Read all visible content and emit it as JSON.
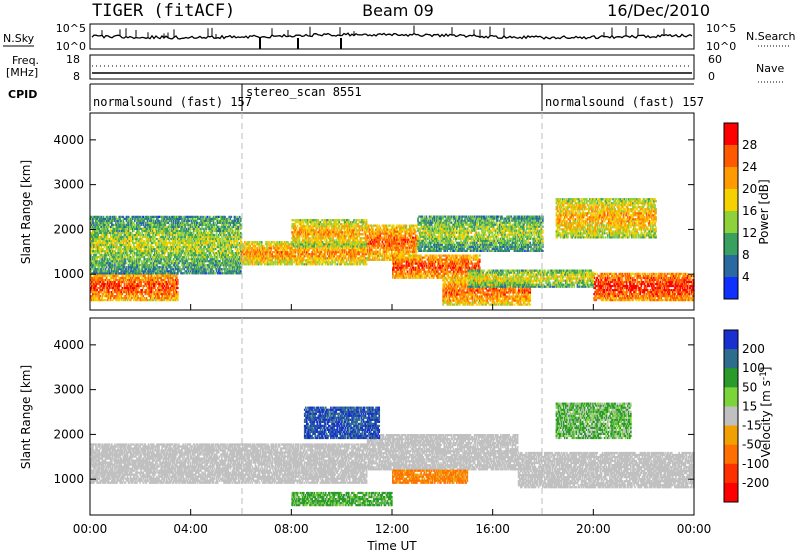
{
  "header": {
    "title": "TIGER (fitACF)",
    "beam": "Beam 09",
    "date": "16/Dec/2010"
  },
  "top_panels": {
    "nsky_label": "N.Sky",
    "nsearch_label": "N.Search",
    "nsky_ticks": [
      "10^5",
      "10^0"
    ],
    "nsearch_ticks": [
      "10^5",
      "10^0"
    ],
    "freq_label_1": "Freq.",
    "freq_label_2": "[MHz]",
    "freq_ticks": [
      "18",
      "8"
    ],
    "nave_label": "Nave",
    "nave_ticks": [
      "60",
      "0"
    ],
    "cpid_label": "CPID",
    "cpid_segments": [
      {
        "label": "normalsound (fast) 157",
        "start_hour": 0
      },
      {
        "label": "stereo_scan 8551",
        "start_hour": 6
      },
      {
        "label": "normalsound (fast) 157",
        "start_hour": 18
      }
    ]
  },
  "power_colorbar": {
    "label": "Power [dB]",
    "ticks": [
      "28",
      "24",
      "20",
      "16",
      "12",
      "8",
      "4"
    ],
    "colors": [
      "#ff0000",
      "#ff5a00",
      "#ff9a00",
      "#f5d100",
      "#8ed13a",
      "#3aa060",
      "#2a6aa0",
      "#1030ff"
    ]
  },
  "velocity_colorbar": {
    "label": "Velocity [m s^-1]",
    "ticks": [
      "200",
      "100",
      "50",
      "15",
      "-15",
      "-50",
      "-100",
      "-200"
    ],
    "colors": [
      "#1a2fd0",
      "#2e6e8c",
      "#2a9a2a",
      "#7ad43a",
      "#c0c0c0",
      "#f0a000",
      "#ff7000",
      "#ff3000",
      "#ff0000"
    ]
  },
  "chart_data": [
    {
      "type": "heatmap",
      "name_of_panel": "power",
      "ylabel": "Slant Range [km]",
      "y_ticks": [
        1000,
        2000,
        3000,
        4000
      ],
      "ylim": [
        200,
        4600
      ],
      "x_ticks": [
        "00:00",
        "04:00",
        "08:00",
        "12:00",
        "16:00",
        "20:00",
        "00:00"
      ],
      "xlim_hours": [
        0,
        24
      ],
      "scatter_bands": [
        {
          "t0": 0,
          "t1": 3.5,
          "r0": 400,
          "r1": 1000,
          "level": 26
        },
        {
          "t0": 0,
          "t1": 6,
          "r0": 1000,
          "r1": 2300,
          "level": 14
        },
        {
          "t0": 6,
          "t1": 11,
          "r0": 1200,
          "r1": 1700,
          "level": 22
        },
        {
          "t0": 8,
          "t1": 11,
          "r0": 1600,
          "r1": 2200,
          "level": 20
        },
        {
          "t0": 11,
          "t1": 13,
          "r0": 1300,
          "r1": 2100,
          "level": 24
        },
        {
          "t0": 12,
          "t1": 15.5,
          "r0": 900,
          "r1": 1400,
          "level": 26
        },
        {
          "t0": 13,
          "t1": 18,
          "r0": 1500,
          "r1": 2300,
          "level": 14
        },
        {
          "t0": 14,
          "t1": 17.5,
          "r0": 300,
          "r1": 900,
          "level": 24
        },
        {
          "t0": 18.5,
          "t1": 22.5,
          "r0": 1800,
          "r1": 2700,
          "level": 20
        },
        {
          "t0": 20,
          "t1": 24,
          "r0": 400,
          "r1": 1000,
          "level": 28
        },
        {
          "t0": 15,
          "t1": 20,
          "r0": 700,
          "r1": 1100,
          "level": 16
        }
      ]
    },
    {
      "type": "heatmap",
      "name_of_panel": "velocity",
      "ylabel": "Slant Range [km]",
      "xlabel": "Time UT",
      "y_ticks": [
        1000,
        2000,
        3000,
        4000
      ],
      "ylim": [
        200,
        4600
      ],
      "x_ticks": [
        "00:00",
        "04:00",
        "08:00",
        "12:00",
        "16:00",
        "20:00",
        "00:00"
      ],
      "xlim_hours": [
        0,
        24
      ],
      "scatter_bands": [
        {
          "t0": 0,
          "t1": 11,
          "r0": 900,
          "r1": 1800,
          "velocity": 0
        },
        {
          "t0": 11,
          "t1": 17,
          "r0": 1200,
          "r1": 2000,
          "velocity": 0
        },
        {
          "t0": 17,
          "t1": 24,
          "r0": 800,
          "r1": 1600,
          "velocity": 0
        },
        {
          "t0": 8.5,
          "t1": 11.5,
          "r0": 1900,
          "r1": 2600,
          "velocity": 150
        },
        {
          "t0": 8,
          "t1": 12,
          "r0": 400,
          "r1": 700,
          "velocity": 40
        },
        {
          "t0": 12,
          "t1": 15,
          "r0": 900,
          "r1": 1200,
          "velocity": -60
        },
        {
          "t0": 18.5,
          "t1": 21.5,
          "r0": 1900,
          "r1": 2700,
          "velocity": 30
        }
      ]
    }
  ]
}
